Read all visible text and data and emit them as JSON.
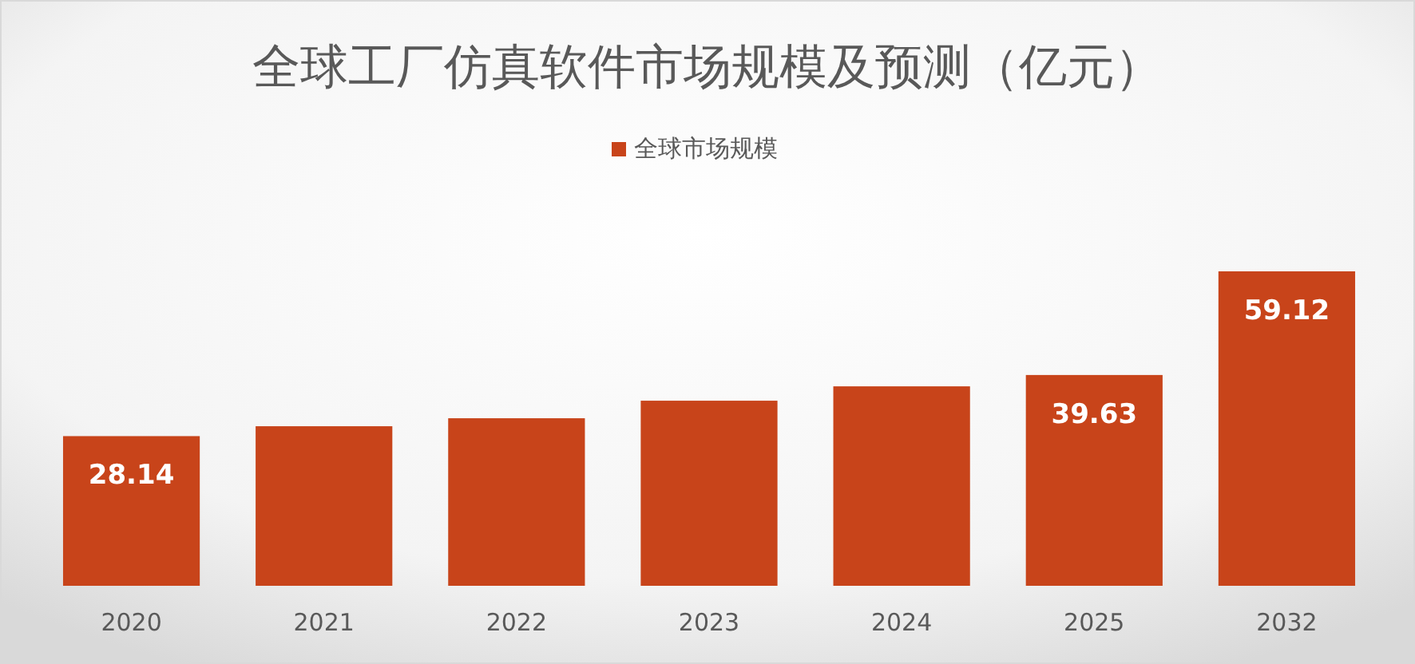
{
  "chart_data": {
    "type": "bar",
    "title": "全球工厂仿真软件市场规模及预测（亿元）",
    "categories": [
      "2020",
      "2021",
      "2022",
      "2023",
      "2024",
      "2025",
      "2032"
    ],
    "series": [
      {
        "name": "全球市场规模",
        "color": "#c8441a",
        "values": [
          28.14,
          30.0,
          31.5,
          34.8,
          37.5,
          39.63,
          59.12
        ],
        "value_labels": [
          "28.14",
          null,
          null,
          null,
          null,
          "39.63",
          "59.12"
        ]
      }
    ],
    "legend": "top",
    "grid": false
  }
}
